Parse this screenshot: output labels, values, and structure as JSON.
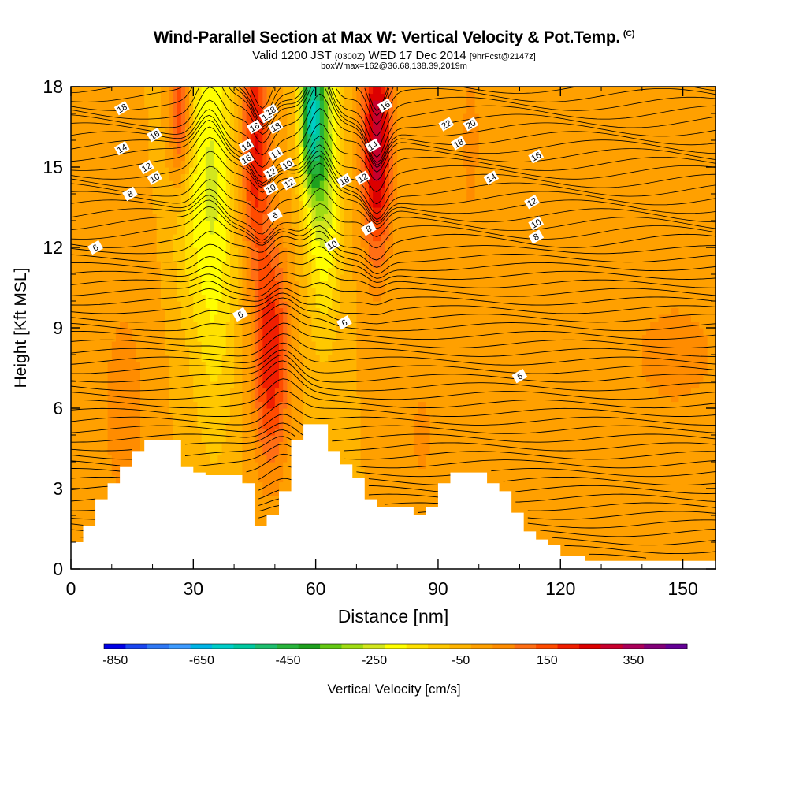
{
  "title": {
    "main": "Wind-Parallel Section at Max W: Vertical Velocity & Pot.Temp.",
    "copyright": "(C)",
    "valid_prefix": "Valid 1200 JST",
    "valid_utc": "(0300Z)",
    "valid_date": "WED 17 Dec 2014",
    "forecast": "[9hrFcst@2147z]",
    "box": "boxWmax=162@36.68,138.39,2019m"
  },
  "chart_data": {
    "type": "heatmap",
    "xlabel": "Distance [nm]",
    "ylabel": "Height [Kft MSL]",
    "xlim": [
      0,
      158
    ],
    "ylim": [
      0,
      18
    ],
    "x_ticks": [
      0,
      30,
      60,
      90,
      120,
      150
    ],
    "y_ticks": [
      0,
      3,
      6,
      9,
      12,
      15,
      18
    ],
    "colorbar": {
      "label": "Vertical Velocity [cm/s]",
      "range": [
        -900,
        450
      ],
      "step": 50,
      "tick_labels": [
        "-850",
        "-650",
        "-450",
        "-250",
        "-50",
        "150",
        "350"
      ],
      "tick_values": [
        -850,
        -650,
        -450,
        -250,
        -50,
        150,
        350
      ],
      "colors": [
        "#0000e6",
        "#1a46f0",
        "#2f78f5",
        "#3d9bff",
        "#00b4e6",
        "#00cdc8",
        "#00c8a0",
        "#1ebe6e",
        "#28b43c",
        "#1ea01e",
        "#64c814",
        "#a0dc14",
        "#d2e61e",
        "#ffff00",
        "#ffe100",
        "#ffc800",
        "#ffb400",
        "#ffa000",
        "#ff8c00",
        "#ff6e14",
        "#ff4b00",
        "#f01e00",
        "#dc0000",
        "#c8002d",
        "#aa005a",
        "#820078",
        "#640096"
      ]
    },
    "terrain_kft": [
      [
        0,
        1.0
      ],
      [
        3,
        1.6
      ],
      [
        6,
        2.6
      ],
      [
        9,
        3.2
      ],
      [
        12,
        3.8
      ],
      [
        15,
        4.4
      ],
      [
        18,
        4.8
      ],
      [
        21,
        4.8
      ],
      [
        24,
        4.8
      ],
      [
        27,
        3.8
      ],
      [
        30,
        3.6
      ],
      [
        33,
        3.5
      ],
      [
        36,
        3.5
      ],
      [
        39,
        3.5
      ],
      [
        42,
        3.2
      ],
      [
        45,
        1.6
      ],
      [
        48,
        2.0
      ],
      [
        51,
        2.9
      ],
      [
        54,
        4.8
      ],
      [
        57,
        5.4
      ],
      [
        60,
        5.4
      ],
      [
        63,
        4.4
      ],
      [
        66,
        3.9
      ],
      [
        69,
        3.4
      ],
      [
        72,
        2.6
      ],
      [
        75,
        2.3
      ],
      [
        78,
        2.3
      ],
      [
        81,
        2.3
      ],
      [
        84,
        2.0
      ],
      [
        87,
        2.3
      ],
      [
        90,
        3.2
      ],
      [
        93,
        3.6
      ],
      [
        96,
        3.6
      ],
      [
        99,
        3.6
      ],
      [
        102,
        3.2
      ],
      [
        105,
        2.9
      ],
      [
        108,
        2.1
      ],
      [
        111,
        1.4
      ],
      [
        114,
        1.1
      ],
      [
        117,
        0.9
      ],
      [
        120,
        0.5
      ],
      [
        123,
        0.5
      ],
      [
        126,
        0.3
      ],
      [
        129,
        0.3
      ],
      [
        158,
        0.3
      ]
    ],
    "w_field": {
      "background": -50,
      "features": [
        {
          "x": 35,
          "h": 14,
          "sx": 4,
          "sh": 6,
          "w": -200
        },
        {
          "x": 28,
          "h": 16,
          "sx": 3,
          "sh": 4,
          "w": -120
        },
        {
          "x": 49,
          "h": 8,
          "sx": 3,
          "sh": 3,
          "w": 250
        },
        {
          "x": 45,
          "h": 16,
          "sx": 2.5,
          "sh": 3,
          "w": 260
        },
        {
          "x": 27,
          "h": 17,
          "sx": 2,
          "sh": 2,
          "w": 300
        },
        {
          "x": 62,
          "h": 15,
          "sx": 3,
          "sh": 4,
          "w": -260
        },
        {
          "x": 59,
          "h": 17,
          "sx": 2,
          "sh": 2,
          "w": -420
        },
        {
          "x": 75,
          "h": 16,
          "sx": 2.5,
          "sh": 3,
          "w": 350
        },
        {
          "x": 13,
          "h": 6,
          "sx": 5,
          "sh": 4,
          "w": 70
        },
        {
          "x": 86,
          "h": 5,
          "sx": 3,
          "sh": 2,
          "w": 60
        },
        {
          "x": 98,
          "h": 16,
          "sx": 2,
          "sh": 3,
          "w": 70
        },
        {
          "x": 148,
          "h": 8,
          "sx": 10,
          "sh": 2,
          "w": 70
        }
      ]
    },
    "theta_labels": [
      "18",
      "16",
      "14",
      "12",
      "10",
      "8",
      "6",
      "6",
      "6",
      "6",
      "8",
      "10",
      "12",
      "14",
      "16",
      "18",
      "20",
      "22",
      "18",
      "16",
      "18",
      "14",
      "12",
      "10",
      "8",
      "10",
      "12",
      "14",
      "16",
      "18",
      "10",
      "12",
      "14",
      "16",
      "18"
    ],
    "theta_label_points": [
      [
        12.5,
        17.2
      ],
      [
        20.5,
        16.2
      ],
      [
        12.5,
        15.7
      ],
      [
        18.5,
        15.0
      ],
      [
        20.5,
        14.6
      ],
      [
        14.5,
        14.0
      ],
      [
        6,
        12.0
      ],
      [
        41.5,
        9.5
      ],
      [
        50,
        13.2
      ],
      [
        67,
        9.2
      ],
      [
        73,
        12.7
      ],
      [
        64,
        12.1
      ],
      [
        71.5,
        14.6
      ],
      [
        74,
        15.8
      ],
      [
        77,
        17.3
      ],
      [
        67,
        14.5
      ],
      [
        98,
        16.6
      ],
      [
        92,
        16.6
      ],
      [
        95,
        15.9
      ],
      [
        43,
        15.3
      ],
      [
        50.2,
        16.5
      ],
      [
        50.2,
        15.5
      ],
      [
        49,
        14.8
      ],
      [
        49,
        14.2
      ],
      [
        114,
        12.4
      ],
      [
        114,
        12.9
      ],
      [
        113,
        13.7
      ],
      [
        103,
        14.6
      ],
      [
        114,
        15.4
      ],
      [
        48,
        16.9
      ],
      [
        53,
        15.1
      ],
      [
        53.5,
        14.4
      ],
      [
        43,
        15.8
      ],
      [
        45,
        16.5
      ],
      [
        49,
        17.1
      ]
    ],
    "theta_label_six": [
      110,
      7.2
    ]
  }
}
